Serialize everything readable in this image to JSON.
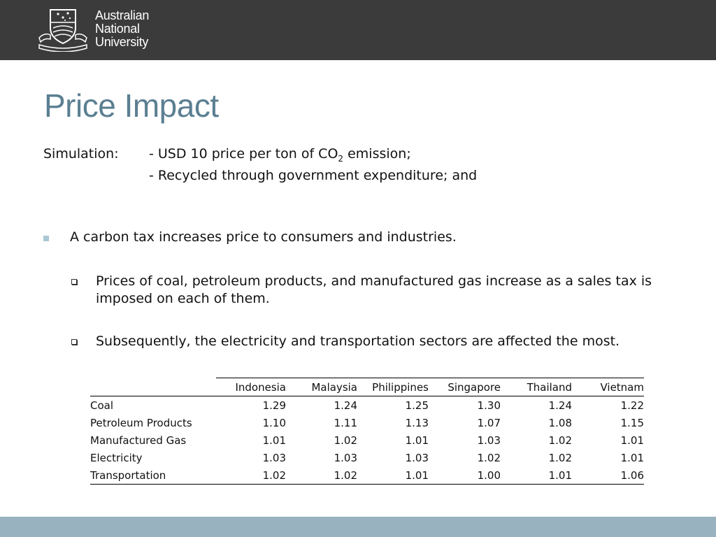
{
  "header": {
    "university_line1": "Australian",
    "university_line2": "National",
    "university_line3": "University"
  },
  "title": "Price Impact",
  "simulation": {
    "label": "Simulation:",
    "line1_prefix": "- USD 10 price per ton of CO",
    "line1_sub": "2",
    "line1_suffix": " emission;",
    "line2": "- Recycled through government expenditure; and"
  },
  "bullets": {
    "main": "A carbon tax increases price to consumers and industries.",
    "sub1": "Prices of coal, petroleum products, and manufactured gas increase as a sales tax is imposed on each of them.",
    "sub2": "Subsequently, the electricity and transportation sectors are affected the most."
  },
  "table": {
    "columns": [
      "Indonesia",
      "Malaysia",
      "Philippines",
      "Singapore",
      "Thailand",
      "Vietnam"
    ],
    "rows": [
      {
        "label": "Coal",
        "values": [
          "1.29",
          "1.24",
          "1.25",
          "1.30",
          "1.24",
          "1.22"
        ]
      },
      {
        "label": "Petroleum Products",
        "values": [
          "1.10",
          "1.11",
          "1.13",
          "1.07",
          "1.08",
          "1.15"
        ]
      },
      {
        "label": "Manufactured Gas",
        "values": [
          "1.01",
          "1.02",
          "1.01",
          "1.03",
          "1.02",
          "1.01"
        ]
      },
      {
        "label": "Electricity",
        "values": [
          "1.03",
          "1.03",
          "1.03",
          "1.02",
          "1.02",
          "1.01"
        ]
      },
      {
        "label": "Transportation",
        "values": [
          "1.02",
          "1.02",
          "1.01",
          "1.00",
          "1.01",
          "1.06"
        ]
      }
    ]
  },
  "colors": {
    "header_bg": "#3b3b3b",
    "title": "#5b7f92",
    "footer_bg": "#98b2bf",
    "bullet": "#a9c8d4"
  }
}
